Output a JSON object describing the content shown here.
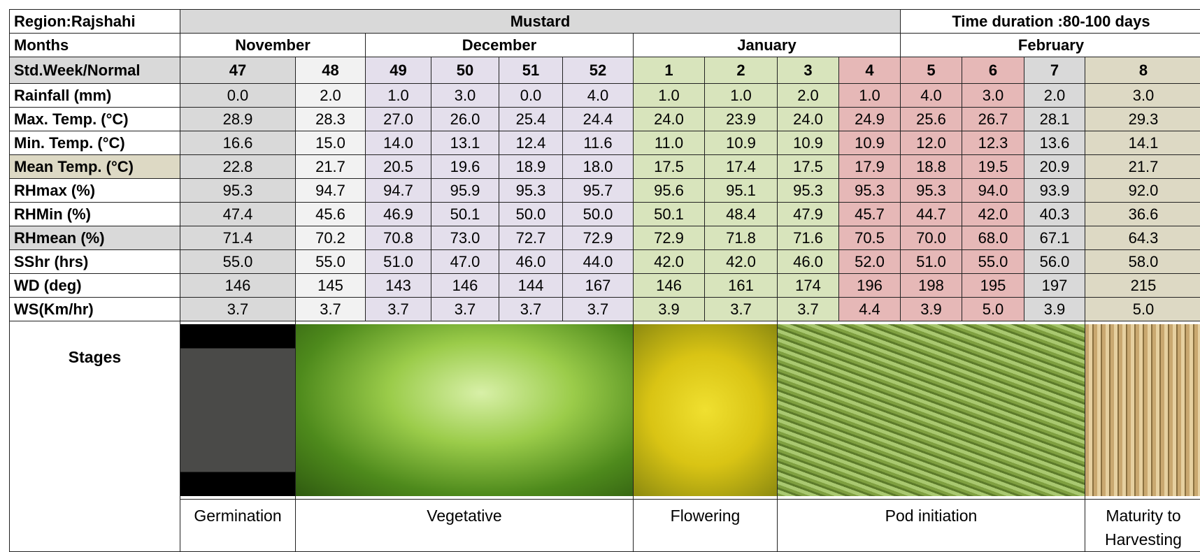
{
  "header": {
    "region": "Region:Rajshahi",
    "crop": "Mustard",
    "duration": "Time duration :80-100 days"
  },
  "months": {
    "label": "Months",
    "names": [
      "November",
      "December",
      "January",
      "February"
    ]
  },
  "weeks": {
    "label": "Std.Week/Normal",
    "values": [
      "47",
      "48",
      "49",
      "50",
      "51",
      "52",
      "1",
      "2",
      "3",
      "4",
      "5",
      "6",
      "7",
      "8"
    ]
  },
  "rows": [
    {
      "label": "Rainfall (mm)",
      "cells": [
        "0.0",
        "2.0",
        "1.0",
        "3.0",
        "0.0",
        "4.0",
        "1.0",
        "1.0",
        "2.0",
        "1.0",
        "4.0",
        "3.0",
        "2.0",
        "3.0"
      ]
    },
    {
      "label": "Max. Temp. (°C)",
      "cells": [
        "28.9",
        "28.3",
        "27.0",
        "26.0",
        "25.4",
        "24.4",
        "24.0",
        "23.9",
        "24.0",
        "24.9",
        "25.6",
        "26.7",
        "28.1",
        "29.3"
      ]
    },
    {
      "label": "Min. Temp. (°C)",
      "cells": [
        "16.6",
        "15.0",
        "14.0",
        "13.1",
        "12.4",
        "11.6",
        "11.0",
        "10.9",
        "10.9",
        "10.9",
        "12.0",
        "12.3",
        "13.6",
        "14.1"
      ]
    },
    {
      "label": "Mean Temp. (°C)",
      "cells": [
        "22.8",
        "21.7",
        "20.5",
        "19.6",
        "18.9",
        "18.0",
        "17.5",
        "17.4",
        "17.5",
        "17.9",
        "18.8",
        "19.5",
        "20.9",
        "21.7"
      ]
    },
    {
      "label": "RHmax (%)",
      "cells": [
        "95.3",
        "94.7",
        "94.7",
        "95.9",
        "95.3",
        "95.7",
        "95.6",
        "95.1",
        "95.3",
        "95.3",
        "95.3",
        "94.0",
        "93.9",
        "92.0"
      ]
    },
    {
      "label": "RHMin (%)",
      "cells": [
        "47.4",
        "45.6",
        "46.9",
        "50.1",
        "50.0",
        "50.0",
        "50.1",
        "48.4",
        "47.9",
        "45.7",
        "44.7",
        "42.0",
        "40.3",
        "36.6"
      ]
    },
    {
      "label": "RHmean (%)",
      "cells": [
        "71.4",
        "70.2",
        "70.8",
        "73.0",
        "72.7",
        "72.9",
        "72.9",
        "71.8",
        "71.6",
        "70.5",
        "70.0",
        "68.0",
        "67.1",
        "64.3"
      ]
    },
    {
      "label": "SShr (hrs)",
      "cells": [
        "55.0",
        "55.0",
        "51.0",
        "47.0",
        "46.0",
        "44.0",
        "42.0",
        "42.0",
        "46.0",
        "52.0",
        "51.0",
        "55.0",
        "56.0",
        "58.0"
      ]
    },
    {
      "label": "WD (deg)",
      "cells": [
        "146",
        "145",
        "143",
        "146",
        "144",
        "167",
        "146",
        "161",
        "174",
        "196",
        "198",
        "195",
        "197",
        "215"
      ]
    },
    {
      "label": "WS(Km/hr)",
      "cells": [
        "3.7",
        "3.7",
        "3.7",
        "3.7",
        "3.7",
        "3.7",
        "3.9",
        "3.7",
        "3.7",
        "4.4",
        "3.9",
        "5.0",
        "3.9",
        "5.0"
      ]
    }
  ],
  "stages": {
    "label": "Stages",
    "names": [
      "Germination",
      "Vegetative",
      "Flowering",
      "Pod initiation",
      "Maturity to Harvesting"
    ]
  }
}
